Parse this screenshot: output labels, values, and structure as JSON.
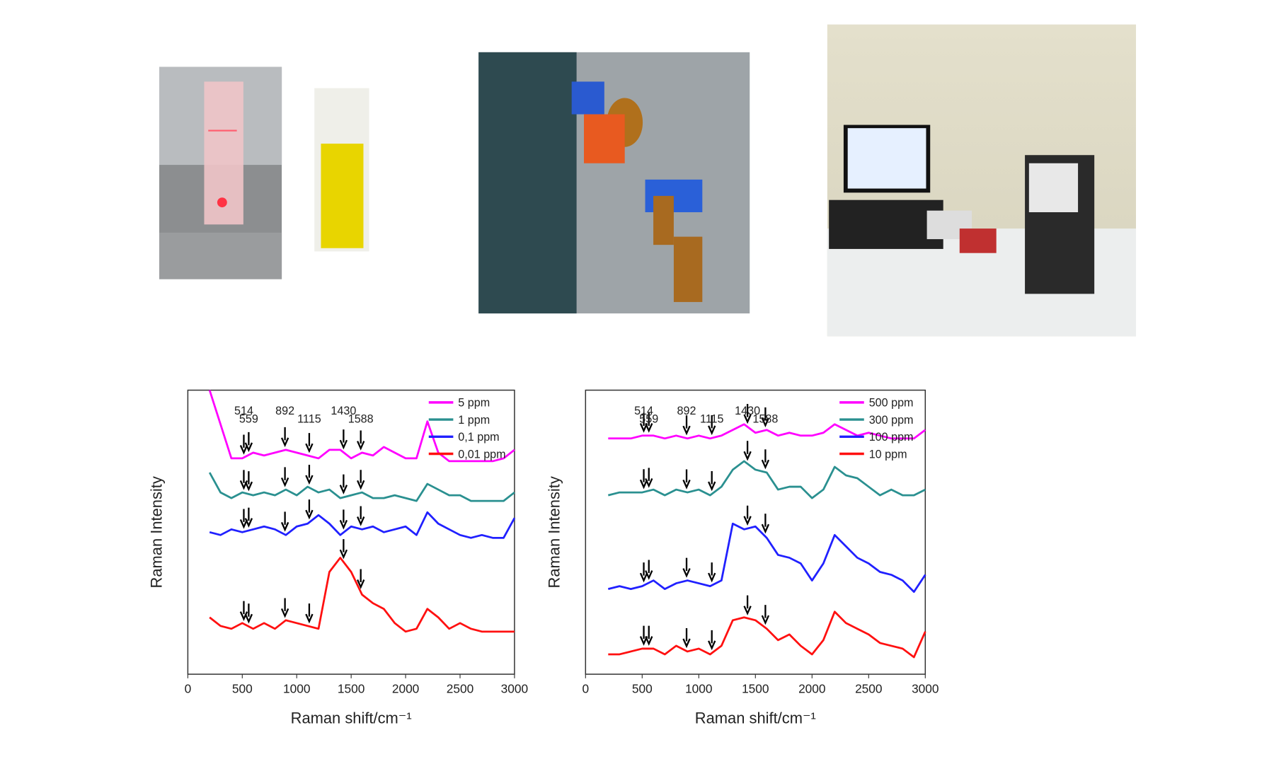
{
  "chart_data": [
    {
      "type": "line",
      "x_label": "Raman shift/cm⁻¹",
      "y_label": "Raman Intensity",
      "x": [
        200,
        300,
        400,
        500,
        600,
        700,
        800,
        900,
        1000,
        1100,
        1200,
        1300,
        1400,
        1500,
        1600,
        1700,
        1800,
        1900,
        2000,
        2100,
        2200,
        2300,
        2400,
        2500,
        2600,
        2700,
        2800,
        2900,
        3000
      ],
      "xlim": [
        0,
        3000
      ],
      "xticks": [
        0,
        500,
        1000,
        1500,
        2000,
        2500,
        3000
      ],
      "ylim": [
        0,
        10
      ],
      "peaks": [
        514,
        559,
        892,
        1115,
        1430,
        1588
      ],
      "series": [
        {
          "name": "5 ppm",
          "color": "#ff00ff",
          "values": [
            10,
            8.8,
            7.6,
            7.6,
            7.8,
            7.7,
            7.8,
            7.9,
            7.8,
            7.7,
            7.6,
            7.9,
            7.9,
            7.6,
            7.8,
            7.7,
            8.0,
            7.8,
            7.6,
            7.6,
            8.9,
            7.8,
            7.5,
            7.5,
            7.5,
            7.5,
            7.5,
            7.6,
            7.9
          ]
        },
        {
          "name": "1 ppm",
          "color": "#2a9090",
          "values": [
            7.1,
            6.4,
            6.2,
            6.4,
            6.3,
            6.4,
            6.3,
            6.5,
            6.3,
            6.6,
            6.4,
            6.5,
            6.2,
            6.3,
            6.4,
            6.2,
            6.2,
            6.3,
            6.2,
            6.1,
            6.7,
            6.5,
            6.3,
            6.3,
            6.1,
            6.1,
            6.1,
            6.1,
            6.4
          ]
        },
        {
          "name": "0,1 ppm",
          "color": "#2020ff",
          "values": [
            5.0,
            4.9,
            5.1,
            5.0,
            5.1,
            5.2,
            5.1,
            4.9,
            5.2,
            5.3,
            5.6,
            5.3,
            4.9,
            5.2,
            5.1,
            5.2,
            5.0,
            5.1,
            5.2,
            4.9,
            5.7,
            5.3,
            5.1,
            4.9,
            4.8,
            4.9,
            4.8,
            4.8,
            5.5
          ]
        },
        {
          "name": "0,01 ppm",
          "color": "#ff1010",
          "values": [
            2.0,
            1.7,
            1.6,
            1.8,
            1.6,
            1.8,
            1.6,
            1.9,
            1.8,
            1.7,
            1.6,
            3.6,
            4.1,
            3.6,
            2.8,
            2.5,
            2.3,
            1.8,
            1.5,
            1.6,
            2.3,
            2.0,
            1.6,
            1.8,
            1.6,
            1.5,
            1.5,
            1.5,
            1.5
          ]
        }
      ]
    },
    {
      "type": "line",
      "x_label": "Raman shift/cm⁻¹",
      "y_label": "Raman Intensity",
      "x": [
        200,
        300,
        400,
        500,
        600,
        700,
        800,
        900,
        1000,
        1100,
        1200,
        1300,
        1400,
        1500,
        1600,
        1700,
        1800,
        1900,
        2000,
        2100,
        2200,
        2300,
        2400,
        2500,
        2600,
        2700,
        2800,
        2900,
        3000
      ],
      "xlim": [
        0,
        3000
      ],
      "xticks": [
        0,
        500,
        1000,
        1500,
        2000,
        2500,
        3000
      ],
      "ylim": [
        0,
        10
      ],
      "peaks": [
        514,
        559,
        892,
        1115,
        1430,
        1588
      ],
      "series": [
        {
          "name": "500 ppm",
          "color": "#ff00ff",
          "values": [
            8.3,
            8.3,
            8.3,
            8.4,
            8.4,
            8.3,
            8.4,
            8.3,
            8.4,
            8.3,
            8.4,
            8.6,
            8.8,
            8.5,
            8.6,
            8.4,
            8.5,
            8.4,
            8.4,
            8.5,
            8.8,
            8.6,
            8.4,
            8.5,
            8.4,
            8.3,
            8.3,
            8.3,
            8.6
          ]
        },
        {
          "name": "300 ppm",
          "color": "#2a9090",
          "values": [
            6.3,
            6.4,
            6.4,
            6.4,
            6.5,
            6.3,
            6.5,
            6.4,
            6.5,
            6.3,
            6.6,
            7.2,
            7.5,
            7.2,
            7.1,
            6.5,
            6.6,
            6.6,
            6.2,
            6.5,
            7.3,
            7.0,
            6.9,
            6.6,
            6.3,
            6.5,
            6.3,
            6.3,
            6.5
          ]
        },
        {
          "name": "100 ppm",
          "color": "#2020ff",
          "values": [
            3.0,
            3.1,
            3.0,
            3.1,
            3.3,
            3.0,
            3.2,
            3.3,
            3.2,
            3.1,
            3.3,
            5.3,
            5.1,
            5.2,
            4.8,
            4.2,
            4.1,
            3.9,
            3.3,
            3.9,
            4.9,
            4.5,
            4.1,
            3.9,
            3.6,
            3.5,
            3.3,
            2.9,
            3.5
          ]
        },
        {
          "name": "10 ppm",
          "color": "#ff1010",
          "values": [
            0.7,
            0.7,
            0.8,
            0.9,
            0.9,
            0.7,
            1.0,
            0.8,
            0.9,
            0.7,
            1.0,
            1.9,
            2.0,
            1.9,
            1.6,
            1.2,
            1.4,
            1.0,
            0.7,
            1.2,
            2.2,
            1.8,
            1.6,
            1.4,
            1.1,
            1.0,
            0.9,
            0.6,
            1.5
          ]
        }
      ]
    }
  ]
}
